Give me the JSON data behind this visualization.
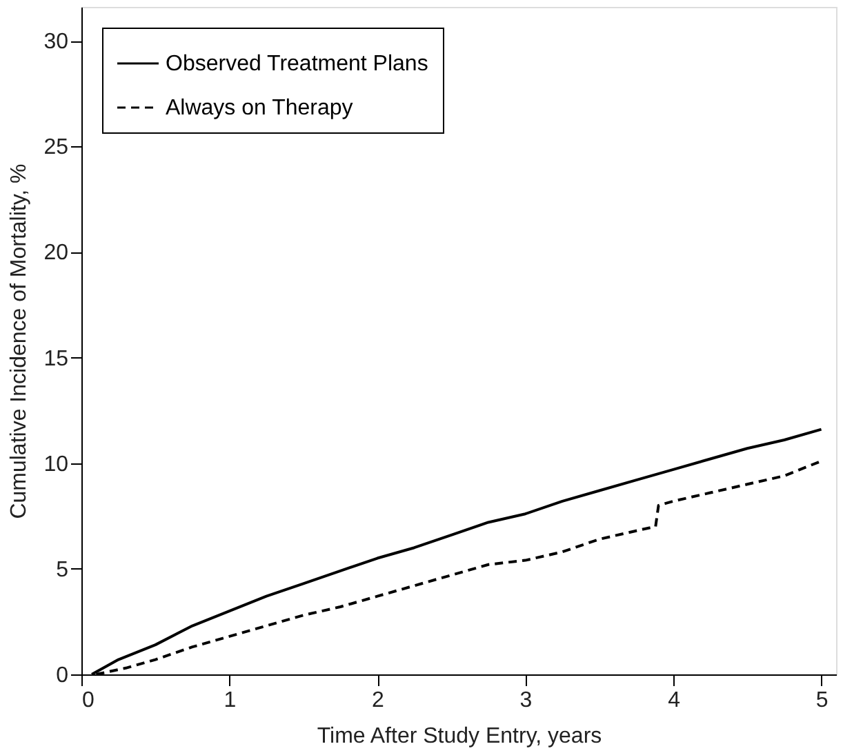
{
  "chart_data": {
    "type": "line",
    "xlabel": "Time After Study Entry, years",
    "ylabel": "Cumulative Incidence of Mortality, %",
    "xlim": [
      0,
      5.1
    ],
    "ylim": [
      0,
      31.6
    ],
    "xticks": [
      0,
      1,
      2,
      3,
      4,
      5
    ],
    "yticks": [
      0,
      5,
      10,
      15,
      20,
      25,
      30
    ],
    "grid": false,
    "legend": "top left",
    "series": [
      {
        "name": "Observed Treatment Plans",
        "color": "#000000",
        "line_style": "solid",
        "x": [
          0.07,
          0.25,
          0.5,
          0.75,
          1,
          1.25,
          1.5,
          1.75,
          2,
          2.25,
          2.5,
          2.75,
          3,
          3.25,
          3.5,
          3.75,
          4,
          4.25,
          4.5,
          4.75,
          5
        ],
        "values": [
          0,
          0.7,
          1.4,
          2.3,
          3.0,
          3.7,
          4.3,
          4.9,
          5.5,
          6.0,
          6.6,
          7.2,
          7.6,
          8.2,
          8.7,
          9.2,
          9.7,
          10.2,
          10.7,
          11.1,
          11.6
        ]
      },
      {
        "name": "Always on Therapy",
        "color": "#000000",
        "line_style": "dashed",
        "x": [
          0.1,
          0.3,
          0.5,
          0.75,
          1,
          1.25,
          1.5,
          1.75,
          2,
          2.25,
          2.5,
          2.75,
          3,
          3.25,
          3.5,
          3.75,
          3.88,
          3.9,
          4,
          4.25,
          4.5,
          4.75,
          5
        ],
        "values": [
          0,
          0.3,
          0.7,
          1.3,
          1.8,
          2.3,
          2.8,
          3.2,
          3.7,
          4.2,
          4.7,
          5.2,
          5.4,
          5.8,
          6.4,
          6.8,
          7.0,
          8.0,
          8.2,
          8.6,
          9.0,
          9.4,
          10.1
        ]
      }
    ]
  }
}
